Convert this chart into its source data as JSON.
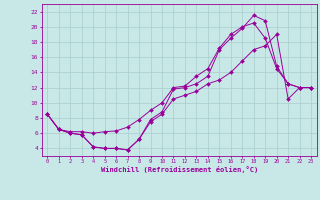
{
  "xlabel": "Windchill (Refroidissement éolien,°C)",
  "ylabel": "",
  "bg_color": "#c8e8e8",
  "line_color": "#990099",
  "grid_color": "#aacccc",
  "xlim": [
    -0.5,
    23.5
  ],
  "ylim": [
    3.0,
    23.0
  ],
  "xticks": [
    0,
    1,
    2,
    3,
    4,
    5,
    6,
    7,
    8,
    9,
    10,
    11,
    12,
    13,
    14,
    15,
    16,
    17,
    18,
    19,
    20,
    21,
    22,
    23
  ],
  "yticks": [
    4,
    6,
    8,
    10,
    12,
    14,
    16,
    18,
    20,
    22
  ],
  "line1_x": [
    0,
    1,
    2,
    3,
    4,
    5,
    6,
    7,
    8,
    9,
    10,
    11,
    12,
    13,
    14,
    15,
    16,
    17,
    18,
    19,
    20,
    21,
    22,
    23
  ],
  "line1_y": [
    8.5,
    6.5,
    6.2,
    6.2,
    6.0,
    6.2,
    6.3,
    6.8,
    7.8,
    9.0,
    10.0,
    12.0,
    12.2,
    13.5,
    14.5,
    17.2,
    19.0,
    20.0,
    20.5,
    18.5,
    14.5,
    12.5,
    12.0,
    12.0
  ],
  "line2_x": [
    0,
    1,
    2,
    3,
    4,
    5,
    6,
    7,
    8,
    9,
    10,
    11,
    12,
    13,
    14,
    15,
    16,
    17,
    18,
    19,
    20,
    21,
    22,
    23
  ],
  "line2_y": [
    8.5,
    6.5,
    6.0,
    5.8,
    4.2,
    4.0,
    4.0,
    3.8,
    5.2,
    7.8,
    8.8,
    11.8,
    12.0,
    12.5,
    13.5,
    17.0,
    18.5,
    19.8,
    21.5,
    20.8,
    14.8,
    12.5,
    12.0,
    12.0
  ],
  "line3_x": [
    0,
    1,
    2,
    3,
    4,
    5,
    6,
    7,
    8,
    9,
    10,
    11,
    12,
    13,
    14,
    15,
    16,
    17,
    18,
    19,
    20,
    21,
    22,
    23
  ],
  "line3_y": [
    8.5,
    6.5,
    6.0,
    5.8,
    4.2,
    4.0,
    4.0,
    3.8,
    5.2,
    7.5,
    8.5,
    10.5,
    11.0,
    11.5,
    12.5,
    13.0,
    14.0,
    15.5,
    17.0,
    17.5,
    19.0,
    10.5,
    12.0,
    12.0
  ]
}
